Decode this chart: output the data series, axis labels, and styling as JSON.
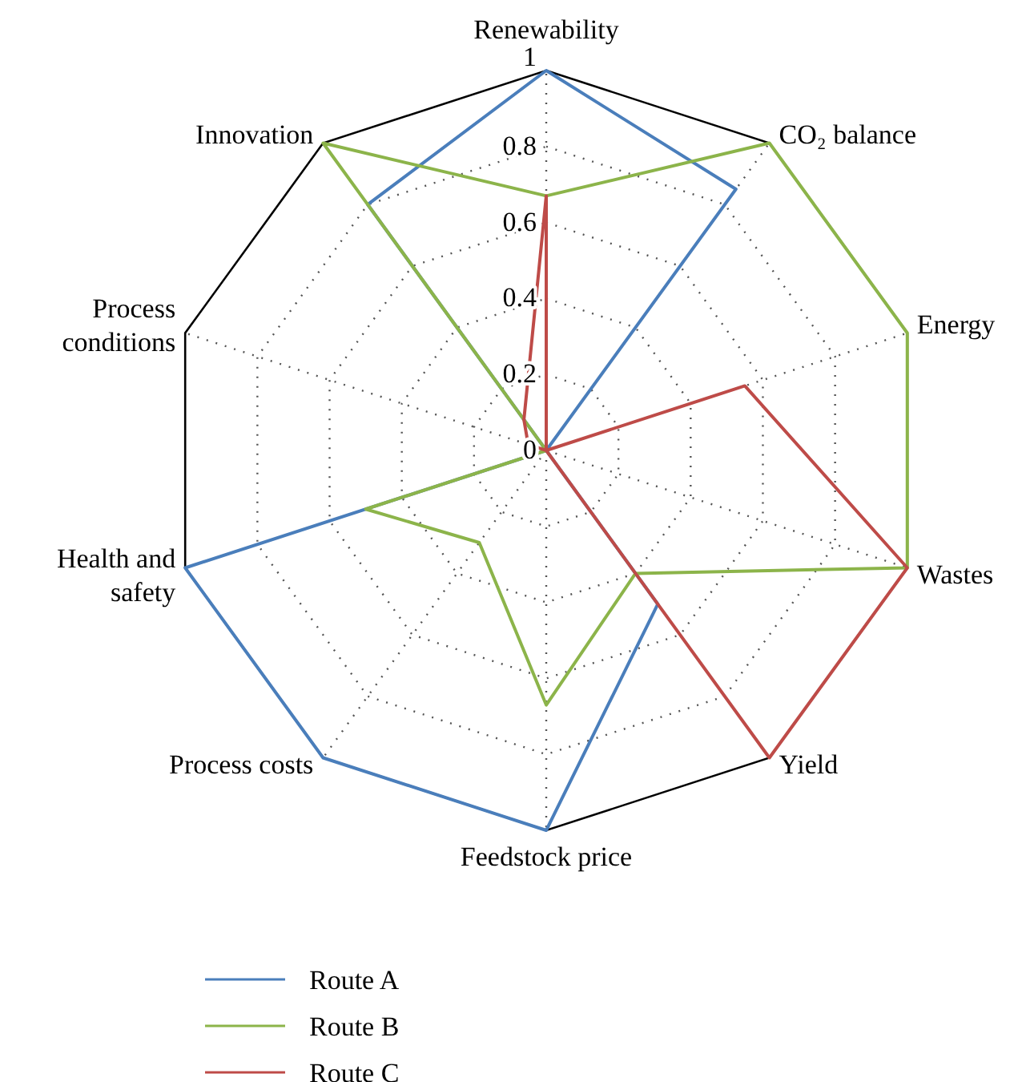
{
  "chart_data": {
    "type": "radar",
    "categories": [
      "Renewability",
      "CO₂ balance",
      "Energy",
      "Wastes",
      "Yield",
      "Feedstock price",
      "Process costs",
      "Health and safety",
      "Process conditions",
      "Innovation"
    ],
    "ylim": [
      0,
      1
    ],
    "yticks": [
      0,
      0.2,
      0.4,
      0.6,
      0.8,
      1
    ],
    "grid": true,
    "legend": "bottom left",
    "series": [
      {
        "name": "Route A",
        "color": "#4a7ebb",
        "values": [
          1,
          0.85,
          0,
          0,
          0.5,
          1,
          1,
          1,
          0,
          0.8
        ]
      },
      {
        "name": "Route B",
        "color": "#8cb44a",
        "values": [
          0.67,
          1,
          1,
          1,
          0.4,
          0.67,
          0.3,
          0.5,
          0,
          1
        ]
      },
      {
        "name": "Route C",
        "color": "#be4b48",
        "values": [
          0.67,
          0,
          0.55,
          1,
          1,
          0,
          0,
          0,
          0.05,
          0.1
        ]
      }
    ]
  }
}
